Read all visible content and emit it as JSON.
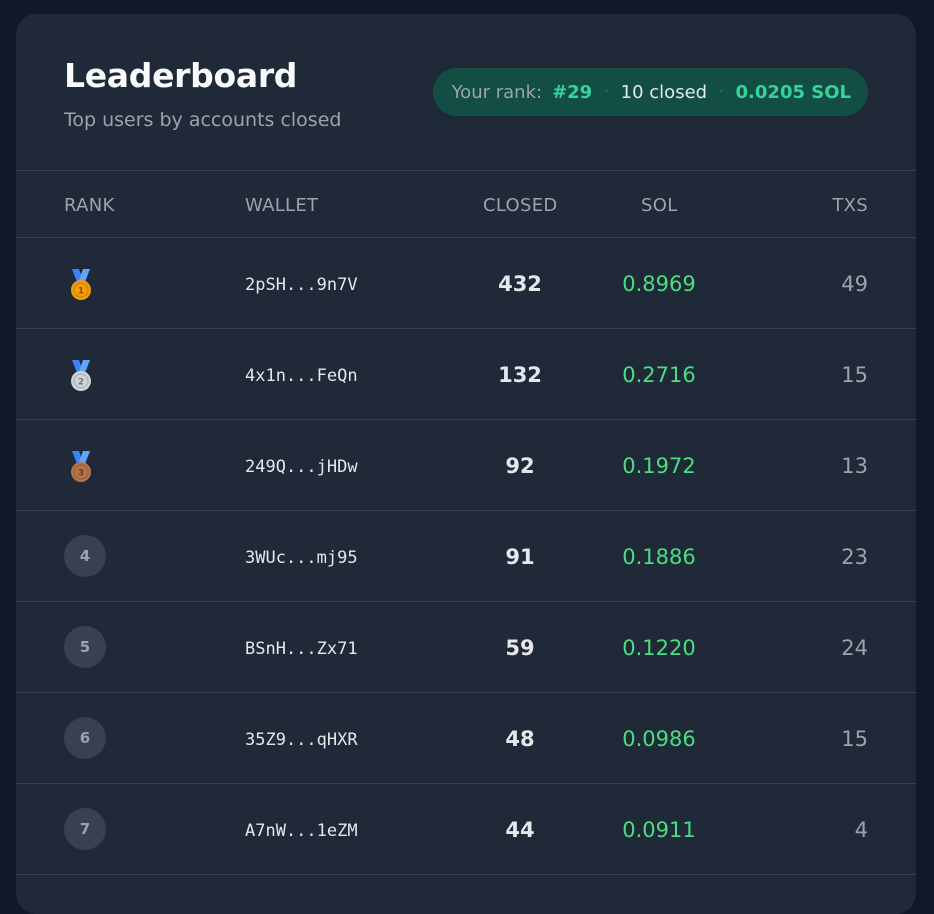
{
  "header": {
    "title": "Leaderboard",
    "subtitle": "Top users by accounts closed"
  },
  "your_rank": {
    "label": "Your rank:",
    "rank": "#29",
    "separator": "·",
    "closed": "10 closed",
    "sol": "0.0205 SOL"
  },
  "columns": {
    "rank": "RANK",
    "wallet": "WALLET",
    "closed": "CLOSED",
    "sol": "SOL",
    "txs": "TXS"
  },
  "colors": {
    "accent_green": "#4ade80",
    "gold": "#f59e0b",
    "silver": "#d1d5db",
    "bronze": "#b8734a",
    "ribbon": "#3b82f6"
  },
  "rows": [
    {
      "rank": "1",
      "medal": "gold-medal-icon",
      "wallet": "2pSH...9n7V",
      "closed": "432",
      "sol": "0.8969",
      "txs": "49"
    },
    {
      "rank": "2",
      "medal": "silver-medal-icon",
      "wallet": "4x1n...FeQn",
      "closed": "132",
      "sol": "0.2716",
      "txs": "15"
    },
    {
      "rank": "3",
      "medal": "bronze-medal-icon",
      "wallet": "249Q...jHDw",
      "closed": "92",
      "sol": "0.1972",
      "txs": "13"
    },
    {
      "rank": "4",
      "wallet": "3WUc...mj95",
      "closed": "91",
      "sol": "0.1886",
      "txs": "23"
    },
    {
      "rank": "5",
      "wallet": "BSnH...Zx71",
      "closed": "59",
      "sol": "0.1220",
      "txs": "24"
    },
    {
      "rank": "6",
      "wallet": "35Z9...qHXR",
      "closed": "48",
      "sol": "0.0986",
      "txs": "15"
    },
    {
      "rank": "7",
      "wallet": "A7nW...1eZM",
      "closed": "44",
      "sol": "0.0911",
      "txs": "4"
    }
  ]
}
